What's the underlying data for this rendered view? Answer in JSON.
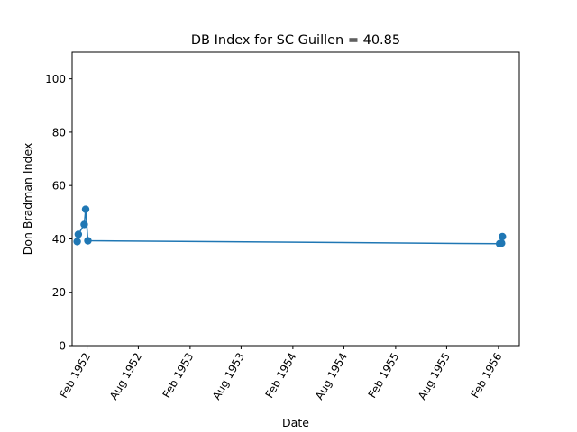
{
  "chart_data": {
    "type": "line",
    "title": "DB Index for SC Guillen = 40.85",
    "xlabel": "Date",
    "ylabel": "Don Bradman Index",
    "ylim": [
      0,
      110
    ],
    "xlim": [
      "1951-12-10",
      "1956-04-15"
    ],
    "yticks": [
      0,
      20,
      40,
      60,
      80,
      100
    ],
    "xticks": [
      {
        "date": "1952-02-01",
        "label": "Feb 1952"
      },
      {
        "date": "1952-08-01",
        "label": "Aug 1952"
      },
      {
        "date": "1953-02-01",
        "label": "Feb 1953"
      },
      {
        "date": "1953-08-01",
        "label": "Aug 1953"
      },
      {
        "date": "1954-02-01",
        "label": "Feb 1954"
      },
      {
        "date": "1954-08-01",
        "label": "Aug 1954"
      },
      {
        "date": "1955-02-01",
        "label": "Feb 1955"
      },
      {
        "date": "1955-08-01",
        "label": "Aug 1955"
      },
      {
        "date": "1956-02-01",
        "label": "Feb 1956"
      }
    ],
    "grid": false,
    "series": [
      {
        "color": "#1f77b4",
        "marker": "circle",
        "points": [
          {
            "x": "1951-12-28",
            "y": 39.0
          },
          {
            "x": "1952-01-01",
            "y": 41.7
          },
          {
            "x": "1952-01-22",
            "y": 45.4
          },
          {
            "x": "1952-01-27",
            "y": 51.1
          },
          {
            "x": "1952-02-04",
            "y": 39.3
          },
          {
            "x": "1956-02-05",
            "y": 38.2
          },
          {
            "x": "1956-02-12",
            "y": 38.4
          },
          {
            "x": "1956-02-15",
            "y": 40.85
          }
        ]
      }
    ]
  }
}
